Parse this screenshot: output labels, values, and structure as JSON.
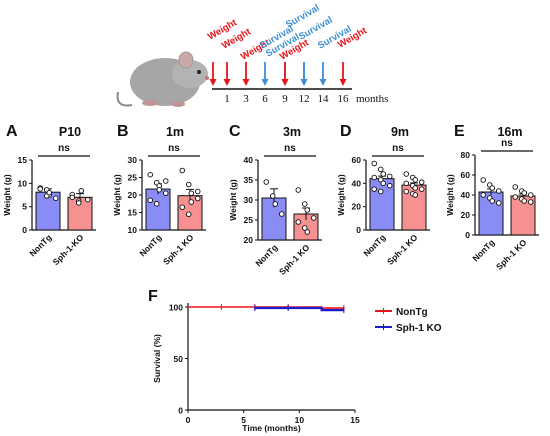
{
  "timeline": {
    "unit": "months",
    "ticks": [
      "1",
      "3",
      "6",
      "9",
      "12",
      "14",
      "16"
    ],
    "events": [
      {
        "label": "Weight",
        "month": "1",
        "color": "#e8141c"
      },
      {
        "label": "Weight",
        "month": "1",
        "color": "#e8141c"
      },
      {
        "label": "Weight",
        "month": "3",
        "color": "#e8141c"
      },
      {
        "label": "Survival",
        "month": "6",
        "color": "#3f8fd8"
      },
      {
        "label": "Survival",
        "month": "9",
        "color": "#3f8fd8"
      },
      {
        "label": "Weight",
        "month": "9",
        "color": "#e8141c"
      },
      {
        "label": "Survival",
        "month": "12",
        "color": "#3f8fd8"
      },
      {
        "label": "Survival",
        "month": "12",
        "color": "#3f8fd8"
      },
      {
        "label": "Survival",
        "month": "14",
        "color": "#3f8fd8"
      },
      {
        "label": "Weight",
        "month": "16",
        "color": "#e8141c"
      }
    ]
  },
  "colors": {
    "nontg": "#8a8cf6",
    "ko": "#f79191",
    "nontg_line": "#e8141c",
    "ko_line": "#1c1ccc"
  },
  "chart_data": [
    {
      "panel": "A",
      "title": "P10",
      "type": "bar",
      "ylabel": "Weight (g)",
      "ylim": [
        0,
        15
      ],
      "yticks": [
        0,
        5,
        10,
        15
      ],
      "categories": [
        "NonTg",
        "Sph-1-KO"
      ],
      "values": [
        8.1,
        7.0
      ],
      "sem": [
        0.7,
        0.8
      ],
      "annotation": "ns",
      "points": [
        [
          9.0,
          8.6,
          7.5,
          6.8,
          8.8,
          7.3,
          8.0
        ],
        [
          7.6,
          6.2,
          8.4,
          6.5,
          7.0,
          5.8
        ]
      ]
    },
    {
      "panel": "B",
      "title": "1m",
      "type": "bar",
      "ylabel": "Weight (g)",
      "ylim": [
        10,
        30
      ],
      "yticks": [
        10,
        15,
        20,
        25,
        30
      ],
      "categories": [
        "NonTg",
        "Sph-1 KO"
      ],
      "values": [
        21.7,
        19.8
      ],
      "sem": [
        1.5,
        1.8
      ],
      "annotation": "ns",
      "points": [
        [
          25.8,
          23.5,
          22.6,
          20.5,
          18.5,
          17.5,
          21.5,
          24.0
        ],
        [
          27.0,
          23.0,
          20.5,
          19.0,
          16.5,
          14.5,
          18.0,
          21.0
        ]
      ]
    },
    {
      "panel": "C",
      "title": "3m",
      "type": "bar",
      "ylabel": "Weight (g)",
      "ylim": [
        20,
        40
      ],
      "yticks": [
        20,
        25,
        30,
        35,
        40
      ],
      "categories": [
        "NonTg",
        "Sph-1 KO"
      ],
      "values": [
        30.5,
        26.5
      ],
      "sem": [
        2.3,
        1.5
      ],
      "annotation": "ns",
      "points": [
        [
          34.5,
          31.0,
          29.0,
          26.5
        ],
        [
          32.5,
          29.0,
          27.5,
          25.5,
          24.5,
          23.0,
          22.0
        ]
      ]
    },
    {
      "panel": "D",
      "title": "9m",
      "type": "bar",
      "ylabel": "Weight (g)",
      "ylim": [
        0,
        60
      ],
      "yticks": [
        0,
        20,
        40,
        60
      ],
      "categories": [
        "NonTg",
        "Sph-1 KO"
      ],
      "values": [
        44.0,
        38.5
      ],
      "sem": [
        2.2,
        1.8
      ],
      "annotation": "ns",
      "points": [
        [
          57.0,
          52.0,
          48.0,
          46.0,
          45.0,
          43.0,
          40.0,
          38.0,
          35.0,
          33.0
        ],
        [
          48.0,
          45.0,
          43.0,
          41.0,
          40.0,
          38.0,
          36.0,
          35.0,
          33.0,
          31.0,
          30.0
        ]
      ]
    },
    {
      "panel": "E",
      "title": "16m",
      "type": "bar",
      "ylabel": "Weight (g)",
      "ylim": [
        0,
        80
      ],
      "yticks": [
        0,
        20,
        40,
        60,
        80
      ],
      "categories": [
        "NonTg",
        "Sph-1 KO"
      ],
      "values": [
        43.0,
        39.0
      ],
      "sem": [
        3.0,
        2.0
      ],
      "annotation": "ns",
      "points": [
        [
          55.0,
          50.0,
          47.0,
          44.0,
          40.0,
          37.0,
          34.0,
          32.0
        ],
        [
          48.0,
          44.0,
          42.0,
          40.0,
          38.0,
          36.0,
          34.0,
          33.0
        ]
      ]
    },
    {
      "panel": "F",
      "type": "line",
      "xlabel": "Time (months)",
      "ylabel": "Survival (%)",
      "xlim": [
        0,
        15
      ],
      "ylim": [
        0,
        100
      ],
      "xticks": [
        0,
        5,
        10,
        15
      ],
      "yticks": [
        0,
        50,
        100
      ],
      "series": [
        {
          "name": "NonTg",
          "color": "#e8141c",
          "x": [
            0,
            12,
            12,
            14
          ],
          "y": [
            100,
            100,
            99,
            99
          ],
          "censor_x": [
            3,
            6,
            9,
            14
          ]
        },
        {
          "name": "Sph-1 KO",
          "color": "#1c1ccc",
          "x": [
            6,
            12,
            12,
            14
          ],
          "y": [
            99,
            99,
            97,
            97
          ],
          "censor_x": [
            6,
            9,
            14
          ]
        }
      ]
    }
  ]
}
